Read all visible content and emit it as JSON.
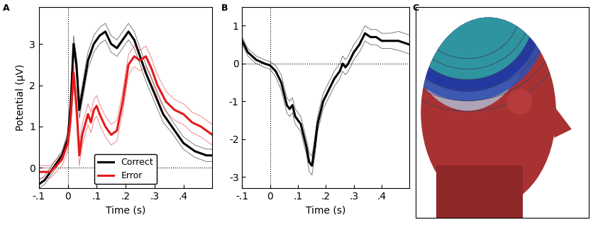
{
  "chart_data": [
    {
      "type": "line",
      "panel_label": "A",
      "x_label": "Time (s)",
      "y_label": "Potential (μV)",
      "xlim": [
        -0.1,
        0.5
      ],
      "ylim": [
        -0.5,
        3.9
      ],
      "xticks": [
        {
          "value": -0.1,
          "label": "-.1"
        },
        0,
        {
          "value": 0.1,
          "label": ".1"
        },
        {
          "value": 0.2,
          "label": ".2"
        },
        {
          "value": 0.3,
          "label": ".3"
        },
        {
          "value": 0.4,
          "label": ".4"
        }
      ],
      "yticks": [
        0,
        1,
        2,
        3
      ],
      "reference_x": 0,
      "reference_y": 0,
      "legend": "lower center",
      "series": [
        {
          "name": "Correct",
          "color": "#000000",
          "x": [
            -0.1,
            -0.08,
            -0.06,
            -0.04,
            -0.02,
            0.0,
            0.01,
            0.02,
            0.03,
            0.04,
            0.05,
            0.07,
            0.09,
            0.11,
            0.13,
            0.15,
            0.17,
            0.19,
            0.21,
            0.23,
            0.25,
            0.27,
            0.3,
            0.33,
            0.36,
            0.4,
            0.44,
            0.48,
            0.5
          ],
          "values": [
            -0.4,
            -0.3,
            -0.1,
            0.1,
            0.3,
            0.7,
            1.5,
            3.0,
            2.5,
            1.4,
            1.8,
            2.6,
            3.0,
            3.2,
            3.3,
            3.0,
            2.9,
            3.1,
            3.3,
            3.1,
            2.7,
            2.3,
            1.8,
            1.3,
            1.0,
            0.6,
            0.4,
            0.3,
            0.3
          ],
          "error": [
            0.1,
            0.1,
            0.1,
            0.1,
            0.1,
            0.15,
            0.2,
            0.2,
            0.2,
            0.2,
            0.2,
            0.2,
            0.2,
            0.2,
            0.2,
            0.2,
            0.2,
            0.2,
            0.2,
            0.2,
            0.2,
            0.2,
            0.2,
            0.2,
            0.15,
            0.15,
            0.15,
            0.15,
            0.15
          ]
        },
        {
          "name": "Error",
          "color": "#e41a1c",
          "x": [
            -0.1,
            -0.06,
            -0.02,
            0.0,
            0.01,
            0.02,
            0.03,
            0.04,
            0.05,
            0.07,
            0.08,
            0.09,
            0.1,
            0.11,
            0.13,
            0.15,
            0.17,
            0.19,
            0.21,
            0.23,
            0.25,
            0.27,
            0.29,
            0.31,
            0.34,
            0.37,
            0.4,
            0.43,
            0.46,
            0.5
          ],
          "values": [
            -0.1,
            -0.1,
            0.2,
            0.6,
            1.2,
            2.3,
            1.5,
            0.3,
            0.8,
            1.3,
            1.1,
            1.4,
            1.5,
            1.3,
            1.0,
            0.8,
            0.9,
            1.6,
            2.5,
            2.7,
            2.6,
            2.7,
            2.4,
            2.0,
            1.6,
            1.4,
            1.3,
            1.1,
            1.0,
            0.8
          ],
          "error": [
            0.15,
            0.15,
            0.15,
            0.2,
            0.25,
            0.25,
            0.25,
            0.25,
            0.25,
            0.25,
            0.25,
            0.25,
            0.25,
            0.25,
            0.25,
            0.25,
            0.25,
            0.25,
            0.25,
            0.25,
            0.25,
            0.25,
            0.25,
            0.25,
            0.25,
            0.25,
            0.25,
            0.25,
            0.25,
            0.25
          ]
        }
      ]
    },
    {
      "type": "line",
      "panel_label": "B",
      "x_label": "Time (s)",
      "xlim": [
        -0.1,
        0.5
      ],
      "ylim": [
        -3.3,
        1.5
      ],
      "xticks": [
        {
          "value": -0.1,
          "label": "-.1"
        },
        0,
        {
          "value": 0.1,
          "label": ".1"
        },
        {
          "value": 0.2,
          "label": ".2"
        },
        {
          "value": 0.3,
          "label": ".3"
        },
        {
          "value": 0.4,
          "label": ".4"
        }
      ],
      "yticks": [
        -3,
        -2,
        -1,
        0,
        1
      ],
      "reference_x": 0,
      "reference_y": 0,
      "series": [
        {
          "color": "#000000",
          "x": [
            -0.1,
            -0.08,
            -0.05,
            -0.02,
            0.0,
            0.02,
            0.04,
            0.06,
            0.07,
            0.08,
            0.09,
            0.11,
            0.13,
            0.14,
            0.15,
            0.16,
            0.17,
            0.19,
            0.21,
            0.23,
            0.25,
            0.26,
            0.27,
            0.28,
            0.3,
            0.32,
            0.34,
            0.36,
            0.38,
            0.4,
            0.43,
            0.46,
            0.5
          ],
          "values": [
            0.6,
            0.3,
            0.1,
            0.0,
            -0.05,
            -0.2,
            -0.5,
            -1.1,
            -1.2,
            -1.1,
            -1.4,
            -1.6,
            -2.2,
            -2.6,
            -2.7,
            -2.2,
            -1.6,
            -1.0,
            -0.7,
            -0.4,
            -0.2,
            0.0,
            -0.1,
            0.0,
            0.3,
            0.5,
            0.8,
            0.7,
            0.7,
            0.6,
            0.6,
            0.6,
            0.5
          ],
          "error": [
            0.1,
            0.1,
            0.1,
            0.1,
            0.1,
            0.15,
            0.2,
            0.2,
            0.2,
            0.2,
            0.2,
            0.2,
            0.2,
            0.25,
            0.25,
            0.25,
            0.2,
            0.2,
            0.2,
            0.2,
            0.2,
            0.2,
            0.2,
            0.2,
            0.2,
            0.2,
            0.2,
            0.2,
            0.2,
            0.2,
            0.2,
            0.25,
            0.25
          ]
        }
      ]
    },
    {
      "type": "image",
      "panel_label": "C"
    }
  ]
}
